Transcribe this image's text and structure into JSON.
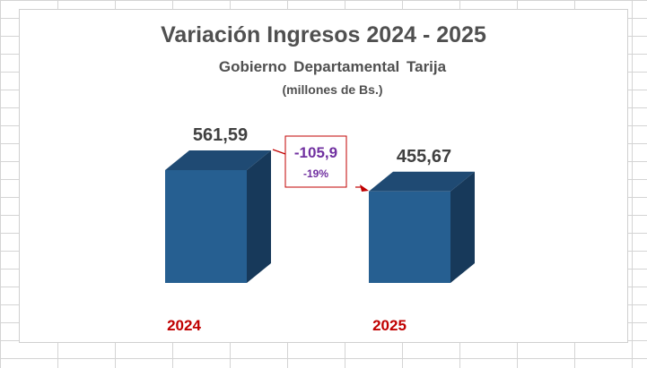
{
  "chart_data": {
    "type": "bar",
    "title": "Variación Ingresos 2024 - 2025",
    "subtitle": "Gobierno  Departamental  Tarija",
    "unit_label": "(millones de Bs.)",
    "categories": [
      "2024",
      "2025"
    ],
    "values": [
      561.59,
      455.67
    ],
    "value_labels": [
      "561,59",
      "455,67"
    ],
    "annotation": {
      "difference_label": "-105,9",
      "percent_label": "-19%"
    },
    "grid": false,
    "style": "3d-column"
  },
  "colors": {
    "bar_front": "#265f91",
    "bar_side": "#17395a",
    "bar_top": "#1f4a73",
    "category_label": "#c00000",
    "annotation_text": "#7030a0",
    "annotation_border": "#c00000",
    "title": "#505050"
  }
}
